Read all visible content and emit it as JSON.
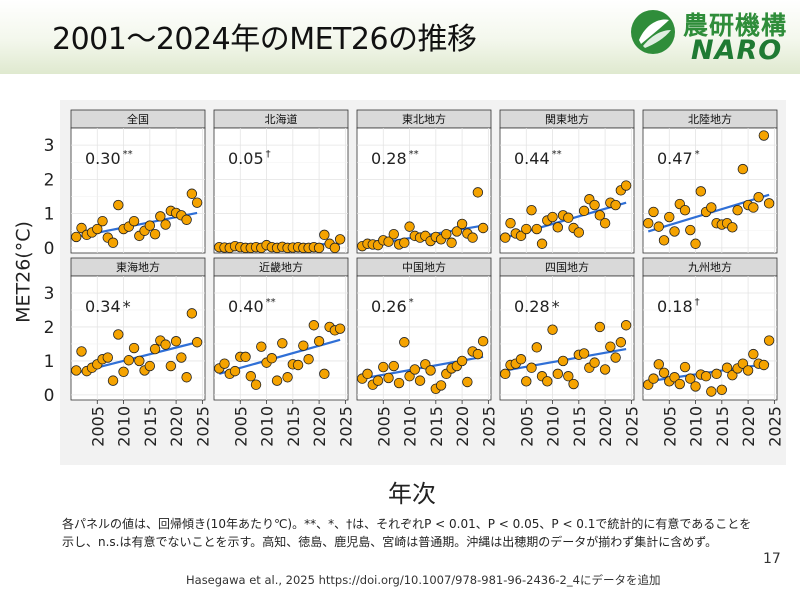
{
  "slide": {
    "title": "2001～2024年のMET26の推移",
    "logo_jp": "農研機構",
    "logo_en": "NARO",
    "caption_line1": "各パネルの値は、回帰傾き(10年あたり℃)。**、*、†は、それぞれP < 0.01、P < 0.05、P < 0.1で統計的に有意であることを",
    "caption_line2": "示し、n.s.は有意でないことを示す。高知、徳島、鹿児島、宮崎は普通期。沖縄は出穂期のデータが揃わず集計に含めず。",
    "citation": "Hasegawa et al., 2025 https://doi.org/10.1007/978-981-96-2436-2_4にデータを追加",
    "page_number": "17"
  },
  "chart_data": {
    "type": "scatter",
    "ylabel": "MET26(°C)",
    "xlabel": "年次",
    "ylim": [
      -0.15,
      3.5
    ],
    "xlim": [
      2000,
      2025.5
    ],
    "yticks": [
      0,
      1,
      2,
      3
    ],
    "xticks": [
      2005,
      2010,
      2015,
      2020,
      2025
    ],
    "point_color": "#f5a300",
    "trend_color": "#2f6fd6",
    "panels": [
      {
        "name": "全国",
        "slope_label": "0.30",
        "sig": "**",
        "trend": [
          0.32,
          1.02
        ],
        "x": [
          2001,
          2002,
          2003,
          2004,
          2005,
          2006,
          2007,
          2008,
          2009,
          2010,
          2011,
          2012,
          2013,
          2014,
          2015,
          2016,
          2017,
          2018,
          2019,
          2020,
          2021,
          2022,
          2023,
          2024
        ],
        "values": [
          0.32,
          0.58,
          0.38,
          0.45,
          0.55,
          0.78,
          0.3,
          0.15,
          1.25,
          0.55,
          0.62,
          0.78,
          0.35,
          0.5,
          0.65,
          0.4,
          0.92,
          0.68,
          1.08,
          1.02,
          0.95,
          0.82,
          1.58,
          1.32
        ]
      },
      {
        "name": "北海道",
        "slope_label": "0.05",
        "sig": "†",
        "trend": [
          0.02,
          0.12
        ],
        "x": [
          2001,
          2002,
          2003,
          2004,
          2005,
          2006,
          2007,
          2008,
          2009,
          2010,
          2011,
          2012,
          2013,
          2014,
          2015,
          2016,
          2017,
          2018,
          2019,
          2020,
          2021,
          2022,
          2023,
          2024
        ],
        "values": [
          0.02,
          0.01,
          0.0,
          0.05,
          0.02,
          0.0,
          0.0,
          0.02,
          0.0,
          0.08,
          0.02,
          0.0,
          0.03,
          0.0,
          0.01,
          0.02,
          0.0,
          0.0,
          0.02,
          0.0,
          0.38,
          0.12,
          0.0,
          0.25
        ]
      },
      {
        "name": "東北地方",
        "slope_label": "0.28",
        "sig": "**",
        "trend": [
          0.05,
          0.65
        ],
        "x": [
          2001,
          2002,
          2003,
          2004,
          2005,
          2006,
          2007,
          2008,
          2009,
          2010,
          2011,
          2012,
          2013,
          2014,
          2015,
          2016,
          2017,
          2018,
          2019,
          2020,
          2021,
          2022,
          2023,
          2024
        ],
        "values": [
          0.05,
          0.12,
          0.1,
          0.08,
          0.22,
          0.18,
          0.4,
          0.1,
          0.15,
          0.62,
          0.35,
          0.3,
          0.35,
          0.2,
          0.32,
          0.25,
          0.4,
          0.15,
          0.48,
          0.7,
          0.42,
          0.3,
          1.62,
          0.58
        ]
      },
      {
        "name": "関東地方",
        "slope_label": "0.44",
        "sig": "**",
        "trend": [
          0.3,
          1.32
        ],
        "x": [
          2001,
          2002,
          2003,
          2004,
          2005,
          2006,
          2007,
          2008,
          2009,
          2010,
          2011,
          2012,
          2013,
          2014,
          2015,
          2016,
          2017,
          2018,
          2019,
          2020,
          2021,
          2022,
          2023,
          2024
        ],
        "values": [
          0.3,
          0.72,
          0.42,
          0.35,
          0.55,
          1.1,
          0.55,
          0.12,
          0.8,
          0.9,
          0.6,
          0.95,
          0.88,
          0.58,
          0.45,
          1.08,
          1.42,
          1.25,
          0.95,
          0.72,
          1.32,
          1.25,
          1.68,
          1.82
        ]
      },
      {
        "name": "北陸地方",
        "slope_label": "0.47",
        "sig": "*",
        "trend": [
          0.48,
          1.55
        ],
        "x": [
          2001,
          2002,
          2003,
          2004,
          2005,
          2006,
          2007,
          2008,
          2009,
          2010,
          2011,
          2012,
          2013,
          2014,
          2015,
          2016,
          2017,
          2018,
          2019,
          2020,
          2021,
          2022,
          2023,
          2024
        ],
        "values": [
          0.72,
          1.05,
          0.62,
          0.22,
          0.9,
          0.48,
          1.28,
          1.1,
          0.52,
          0.12,
          1.65,
          1.05,
          1.18,
          0.72,
          0.68,
          0.72,
          0.6,
          1.1,
          2.3,
          1.25,
          1.18,
          1.48,
          3.28,
          1.3
        ]
      },
      {
        "name": "東海地方",
        "slope_label": "0.34",
        "sig": "*",
        "trend": [
          0.65,
          1.55
        ],
        "x": [
          2001,
          2002,
          2003,
          2004,
          2005,
          2006,
          2007,
          2008,
          2009,
          2010,
          2011,
          2012,
          2013,
          2014,
          2015,
          2016,
          2017,
          2018,
          2019,
          2020,
          2021,
          2022,
          2023,
          2024
        ],
        "values": [
          0.72,
          1.28,
          0.7,
          0.8,
          0.9,
          1.05,
          1.1,
          0.42,
          1.78,
          0.68,
          1.02,
          1.38,
          1.0,
          0.72,
          0.85,
          1.35,
          1.6,
          1.48,
          0.85,
          1.58,
          1.1,
          0.52,
          2.4,
          1.55
        ]
      },
      {
        "name": "近畿地方",
        "slope_label": "0.40",
        "sig": "**",
        "trend": [
          0.62,
          1.62
        ],
        "x": [
          2001,
          2002,
          2003,
          2004,
          2005,
          2006,
          2007,
          2008,
          2009,
          2010,
          2011,
          2012,
          2013,
          2014,
          2015,
          2016,
          2017,
          2018,
          2019,
          2020,
          2021,
          2022,
          2023,
          2024
        ],
        "values": [
          0.78,
          0.92,
          0.62,
          0.7,
          1.12,
          1.12,
          0.55,
          0.3,
          1.42,
          0.95,
          1.08,
          0.42,
          1.52,
          0.52,
          0.9,
          0.88,
          1.45,
          1.05,
          2.05,
          1.58,
          0.62,
          2.0,
          1.9,
          1.95
        ]
      },
      {
        "name": "中国地方",
        "slope_label": "0.26",
        "sig": "*",
        "trend": [
          0.48,
          1.12
        ],
        "x": [
          2001,
          2002,
          2003,
          2004,
          2005,
          2006,
          2007,
          2008,
          2009,
          2010,
          2011,
          2012,
          2013,
          2014,
          2015,
          2016,
          2017,
          2018,
          2019,
          2020,
          2021,
          2022,
          2023,
          2024
        ],
        "values": [
          0.48,
          0.62,
          0.3,
          0.42,
          0.82,
          0.5,
          0.85,
          0.35,
          1.55,
          0.55,
          0.75,
          0.42,
          0.9,
          0.72,
          0.18,
          0.28,
          0.62,
          0.78,
          0.85,
          1.0,
          0.38,
          1.28,
          1.2,
          1.58
        ]
      },
      {
        "name": "四国地方",
        "slope_label": "0.28",
        "sig": "*",
        "trend": [
          0.72,
          1.35
        ],
        "x": [
          2001,
          2002,
          2003,
          2004,
          2005,
          2006,
          2007,
          2008,
          2009,
          2010,
          2011,
          2012,
          2013,
          2014,
          2015,
          2016,
          2017,
          2018,
          2019,
          2020,
          2021,
          2022,
          2023,
          2024
        ],
        "values": [
          0.62,
          0.88,
          0.92,
          1.05,
          0.4,
          0.8,
          1.4,
          0.55,
          0.4,
          1.92,
          0.62,
          1.0,
          0.55,
          0.32,
          1.18,
          1.22,
          0.8,
          0.95,
          2.0,
          0.75,
          1.42,
          1.1,
          1.55,
          2.05
        ]
      },
      {
        "name": "九州地方",
        "slope_label": "0.18",
        "sig": "†",
        "trend": [
          0.4,
          0.92
        ],
        "x": [
          2001,
          2002,
          2003,
          2004,
          2005,
          2006,
          2007,
          2008,
          2009,
          2010,
          2011,
          2012,
          2013,
          2014,
          2015,
          2016,
          2017,
          2018,
          2019,
          2020,
          2021,
          2022,
          2023,
          2024
        ],
        "values": [
          0.3,
          0.48,
          0.9,
          0.65,
          0.4,
          0.52,
          0.32,
          0.82,
          0.48,
          0.25,
          0.6,
          0.55,
          0.1,
          0.62,
          0.15,
          0.8,
          0.58,
          0.78,
          0.92,
          0.72,
          1.2,
          0.92,
          0.88,
          1.6
        ]
      }
    ]
  }
}
